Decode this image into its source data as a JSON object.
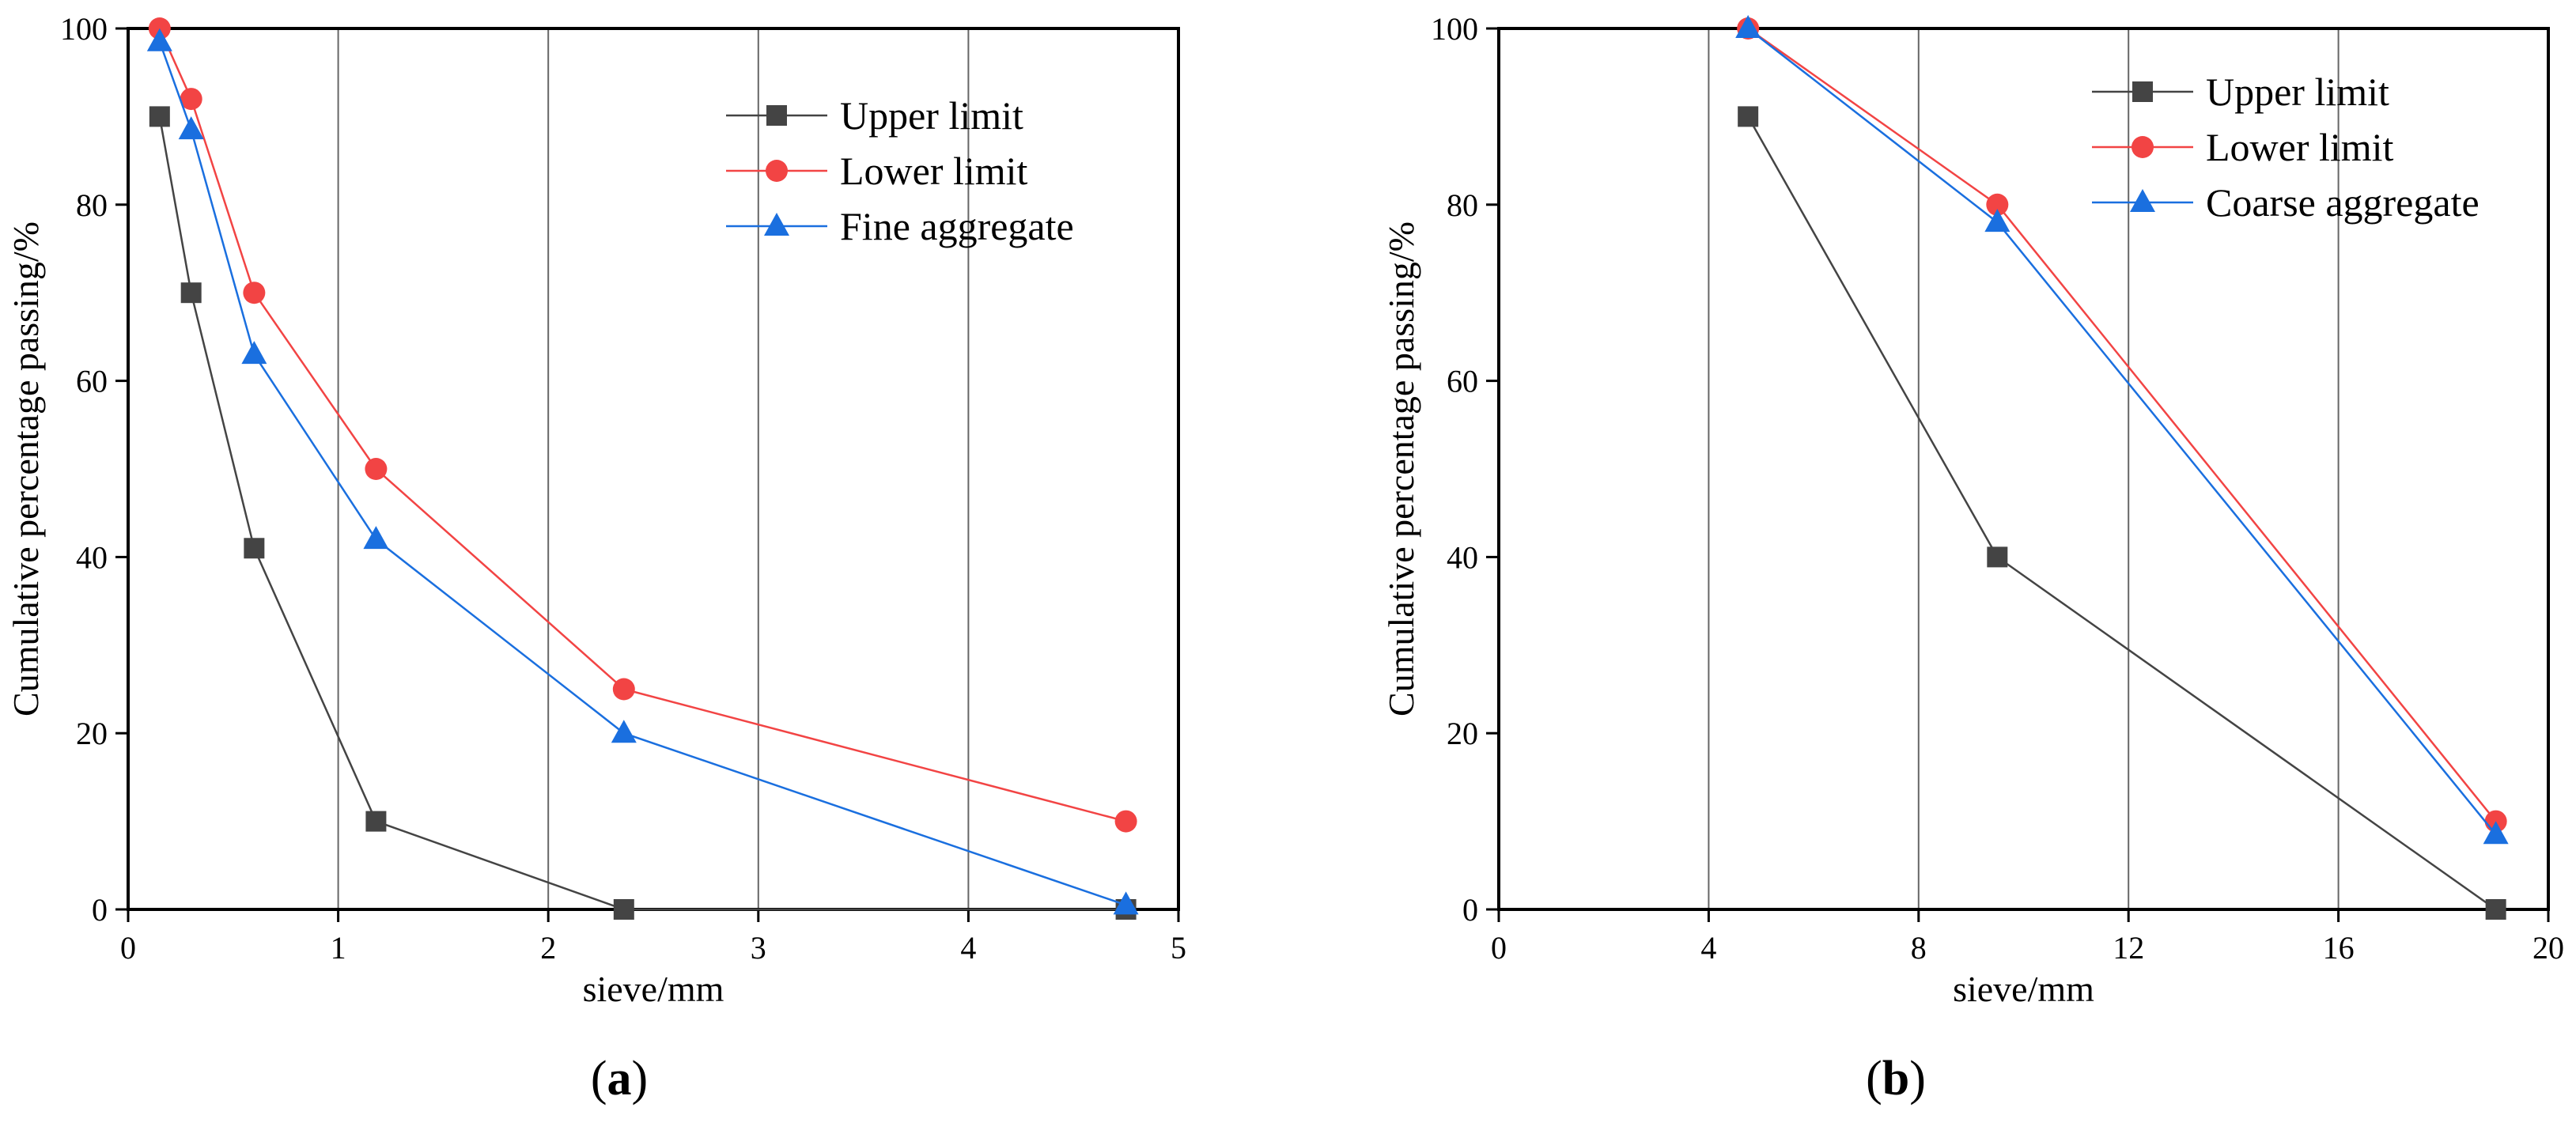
{
  "chart_data": [
    {
      "type": "line",
      "panel_label": "a",
      "xlabel": "sieve/mm",
      "ylabel": "Cumulative percentage passing/%",
      "xlim": [
        0,
        5
      ],
      "ylim": [
        0,
        100
      ],
      "xticks": [
        0,
        1,
        2,
        3,
        4,
        5
      ],
      "yticks": [
        0,
        20,
        40,
        60,
        80,
        100
      ],
      "grid": "vertical",
      "legend": "top-right",
      "series": [
        {
          "name": "Upper limit",
          "color": "#444444",
          "marker": "square",
          "x": [
            0.15,
            0.3,
            0.6,
            1.18,
            2.36,
            4.75
          ],
          "y": [
            90,
            70,
            41,
            10,
            0,
            0
          ]
        },
        {
          "name": "Lower limit",
          "color": "#f24444",
          "marker": "circle",
          "x": [
            0.15,
            0.3,
            0.6,
            1.18,
            2.36,
            4.75
          ],
          "y": [
            100,
            92,
            70,
            50,
            25,
            10
          ]
        },
        {
          "name": "Fine aggregate",
          "color": "#1a6fdf",
          "marker": "triangle",
          "x": [
            0.15,
            0.3,
            0.6,
            1.18,
            2.36,
            4.75
          ],
          "y": [
            98.5,
            88.5,
            63,
            42,
            20,
            0.5
          ]
        }
      ]
    },
    {
      "type": "line",
      "panel_label": "b",
      "xlabel": "sieve/mm",
      "ylabel": "Cumulative percentage passing/%",
      "xlim": [
        0,
        20
      ],
      "ylim": [
        0,
        100
      ],
      "xticks": [
        0,
        4,
        8,
        12,
        16,
        20
      ],
      "yticks": [
        0,
        20,
        40,
        60,
        80,
        100
      ],
      "grid": "vertical",
      "legend": "top-right",
      "series": [
        {
          "name": "Upper limit",
          "color": "#444444",
          "marker": "square",
          "x": [
            4.75,
            9.5,
            19
          ],
          "y": [
            90,
            40,
            0
          ]
        },
        {
          "name": "Lower limit",
          "color": "#f24444",
          "marker": "circle",
          "x": [
            4.75,
            9.5,
            19
          ],
          "y": [
            100,
            80,
            10
          ]
        },
        {
          "name": "Coarse aggregate",
          "color": "#1a6fdf",
          "marker": "triangle",
          "x": [
            4.75,
            9.5,
            19
          ],
          "y": [
            100,
            78,
            8.5
          ]
        }
      ]
    }
  ]
}
